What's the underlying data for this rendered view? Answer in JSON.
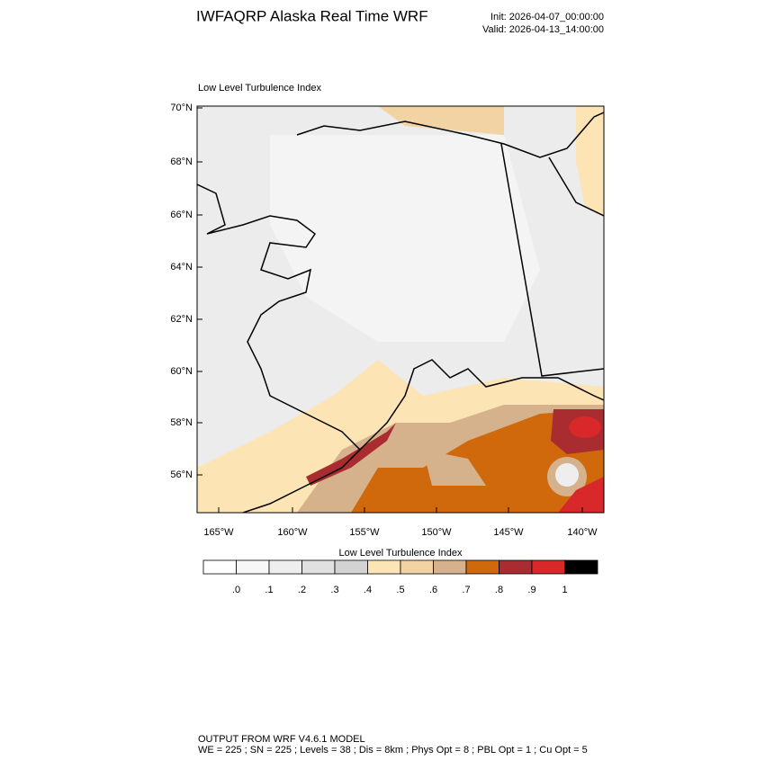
{
  "header": {
    "title": "IWFAQRP Alaska Real Time WRF",
    "init": "Init: 2026-04-07_00:00:00",
    "valid": "Valid: 2026-04-13_14:00:00"
  },
  "map": {
    "title": "Low Level Turbulence Index",
    "lat_labels": [
      "70°N",
      "68°N",
      "66°N",
      "64°N",
      "62°N",
      "60°N",
      "58°N",
      "56°N"
    ],
    "lon_labels": [
      "165°W",
      "160°W",
      "155°W",
      "150°W",
      "145°W",
      "140°W"
    ]
  },
  "colorbar": {
    "title": "Low Level Turbulence Index",
    "colors": [
      "#ffffff",
      "#f7f7f7",
      "#eeeeee",
      "#e1e1e1",
      "#d3d3d3",
      "#fde4b4",
      "#f2d4a4",
      "#d6b28c",
      "#d0690c",
      "#a82c30",
      "#d8282a",
      "#000000"
    ],
    "labels": [
      ".0",
      ".1",
      ".2",
      ".3",
      ".4",
      ".5",
      ".6",
      ".7",
      ".8",
      ".9",
      "1"
    ]
  },
  "footer": {
    "line1": "OUTPUT FROM WRF V4.6.1 MODEL",
    "line2": "WE = 225 ; SN = 225 ; Levels = 38 ; Dis = 8km ; Phys Opt = 8 ; PBL Opt = 1 ; Cu Opt = 5"
  }
}
